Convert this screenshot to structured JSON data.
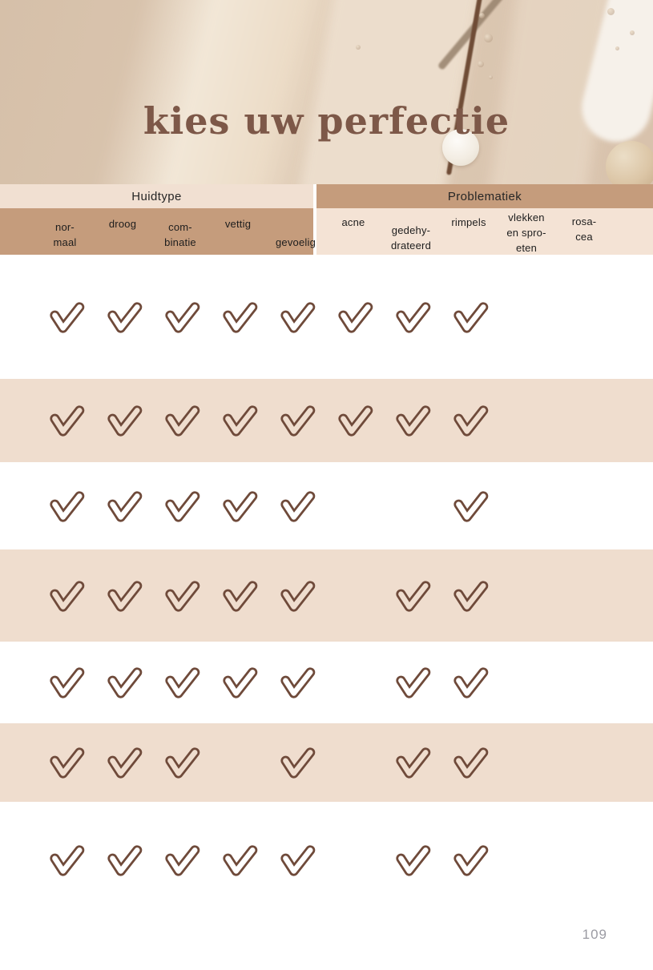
{
  "page": {
    "title": "kies uw perfectie",
    "page_number": "109"
  },
  "table": {
    "groups": [
      {
        "id": "huidtype",
        "label": "Huidtype"
      },
      {
        "id": "problematiek",
        "label": "Problematiek"
      }
    ],
    "columns": [
      {
        "id": "normaal",
        "label": "nor-\nmaal",
        "group": "huidtype"
      },
      {
        "id": "droog",
        "label": "droog",
        "group": "huidtype"
      },
      {
        "id": "combinatie",
        "label": "com-\nbinatie",
        "group": "huidtype"
      },
      {
        "id": "vettig",
        "label": "vettig",
        "group": "huidtype"
      },
      {
        "id": "gevoelig",
        "label": "gevoelig",
        "group": "huidtype"
      },
      {
        "id": "acne",
        "label": "acne",
        "group": "problematiek"
      },
      {
        "id": "gedehydrateerd",
        "label": "gedehy-\ndrateerd",
        "group": "problematiek"
      },
      {
        "id": "rimpels",
        "label": "rimpels",
        "group": "problematiek"
      },
      {
        "id": "vlekken-en-sproeten",
        "label": "vlekken\nen spro-\neten",
        "group": "problematiek"
      },
      {
        "id": "rosacea",
        "label": "rosa-\ncea",
        "group": "problematiek"
      }
    ],
    "rows": [
      {
        "checks": [
          1,
          1,
          1,
          1,
          1,
          1,
          1,
          1,
          0,
          0
        ]
      },
      {
        "checks": [
          1,
          1,
          1,
          1,
          1,
          1,
          1,
          1,
          0,
          0
        ]
      },
      {
        "checks": [
          1,
          1,
          1,
          1,
          1,
          0,
          0,
          1,
          0,
          0
        ]
      },
      {
        "checks": [
          1,
          1,
          1,
          1,
          1,
          0,
          1,
          1,
          0,
          0
        ]
      },
      {
        "checks": [
          1,
          1,
          1,
          1,
          1,
          0,
          1,
          1,
          0,
          0
        ]
      },
      {
        "checks": [
          1,
          1,
          1,
          0,
          1,
          0,
          1,
          1,
          0,
          0
        ]
      },
      {
        "checks": [
          1,
          1,
          1,
          1,
          1,
          0,
          1,
          1,
          0,
          0
        ]
      }
    ]
  },
  "colors": {
    "hero_base": "#d8c2ac",
    "title_brown": "#7d5848",
    "header_light": "#f1e0d2",
    "header_tan": "#c59c7c",
    "subheader_pink": "#f4e3d5",
    "row_pink": "#efddce",
    "check_stroke": "#6f4a3a",
    "page_number_gray": "#9b9ba3"
  },
  "icons": {
    "check": "check-icon"
  }
}
